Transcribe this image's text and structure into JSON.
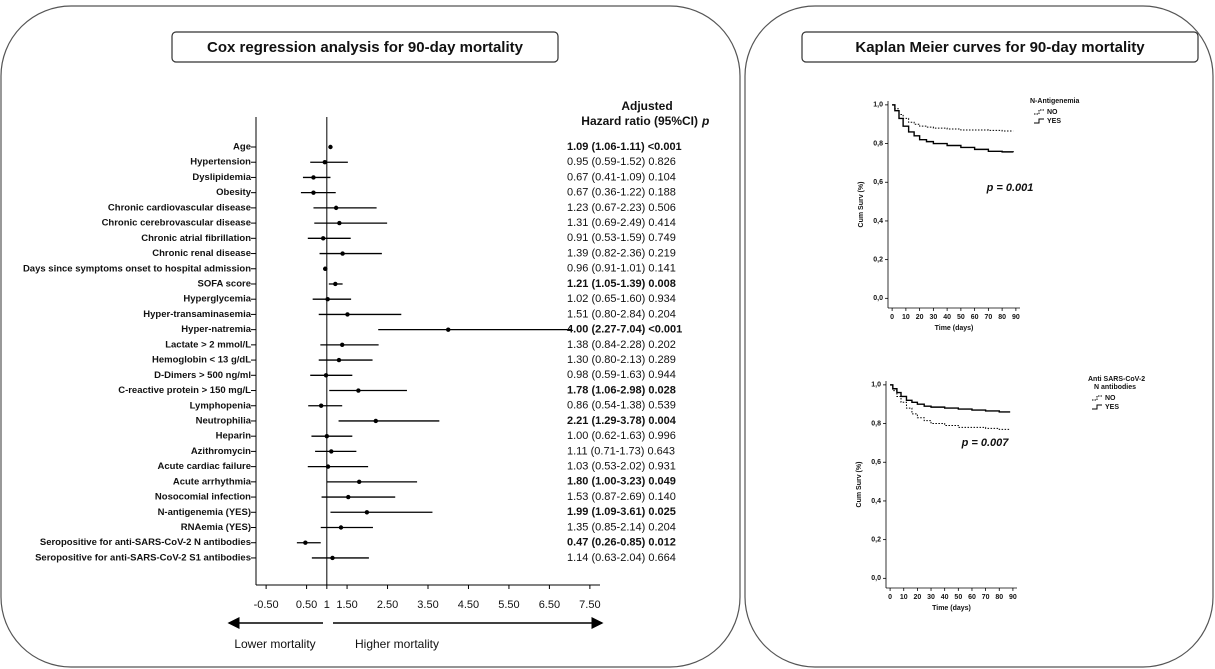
{
  "chart_data": [
    {
      "type": "forest",
      "title": "Cox regression analysis for 90-day mortality",
      "header": [
        "Adjusted",
        "Hazard ratio (95%CI)"
      ],
      "header_p": "p",
      "categories": [
        "Age",
        "Hypertension",
        "Dyslipidemia",
        "Obesity",
        "Chronic cardiovascular disease",
        "Chronic cerebrovascular disease",
        "Chronic atrial fibrillation",
        "Chronic renal disease",
        "Days since symptoms onset to hospital admission",
        "SOFA score",
        "Hyperglycemia",
        "Hyper-transaminasemia",
        "Hyper-natremia",
        "Lactate > 2 mmol/L",
        "Hemoglobin < 13 g/dL",
        "D-Dimers > 500 ng/ml",
        "C-reactive protein  > 150 mg/L",
        "Lymphopenia",
        "Neutrophilia",
        "Heparin",
        "Azithromycin",
        "Acute cardiac failure",
        "Acute arrhythmia",
        "Nosocomial infection",
        "N-antigenemia (YES)",
        "RNAemia (YES)",
        "Seropositive for anti-SARS-CoV-2 N antibodies",
        "Seropositive for anti-SARS-CoV-2 S1 antibodies"
      ],
      "values": [
        1.09,
        0.95,
        0.67,
        0.67,
        1.23,
        1.31,
        0.91,
        1.39,
        0.96,
        1.21,
        1.02,
        1.51,
        4.0,
        1.38,
        1.3,
        0.98,
        1.78,
        0.86,
        2.21,
        1.0,
        1.11,
        1.03,
        1.8,
        1.53,
        1.99,
        1.35,
        0.47,
        1.14
      ],
      "lower": [
        1.06,
        0.59,
        0.41,
        0.36,
        0.67,
        0.69,
        0.53,
        0.82,
        0.91,
        1.05,
        0.65,
        0.8,
        2.27,
        0.84,
        0.8,
        0.59,
        1.06,
        0.54,
        1.29,
        0.62,
        0.71,
        0.53,
        1.0,
        0.87,
        1.09,
        0.85,
        0.26,
        0.63
      ],
      "upper": [
        1.11,
        1.52,
        1.09,
        1.22,
        2.23,
        2.49,
        1.59,
        2.36,
        1.01,
        1.39,
        1.6,
        2.84,
        7.04,
        2.28,
        2.13,
        1.63,
        2.98,
        1.38,
        3.78,
        1.63,
        1.73,
        2.02,
        3.23,
        2.69,
        3.61,
        2.14,
        0.85,
        2.04
      ],
      "value_labels": [
        "1.09 (1.06-1.11) <0.001",
        "0.95 (0.59-1.52) 0.826",
        "0.67 (0.41-1.09) 0.104",
        "0.67 (0.36-1.22) 0.188",
        "1.23 (0.67-2.23) 0.506",
        "1.31 (0.69-2.49) 0.414",
        "0.91 (0.53-1.59) 0.749",
        "1.39 (0.82-2.36) 0.219",
        "0.96 (0.91-1.01) 0.141",
        "1.21 (1.05-1.39) 0.008",
        "1.02 (0.65-1.60) 0.934",
        "1.51 (0.80-2.84) 0.204",
        "4.00 (2.27-7.04) <0.001",
        "1.38 (0.84-2.28) 0.202",
        "1.30 (0.80-2.13) 0.289",
        "0.98 (0.59-1.63) 0.944",
        "1.78 (1.06-2.98) 0.028",
        "0.86 (0.54-1.38) 0.539",
        "2.21 (1.29-3.78) 0.004",
        "1.00 (0.62-1.63) 0.996",
        "1.11 (0.71-1.73) 0.643",
        "1.03 (0.53-2.02) 0.931",
        "1.80 (1.00-3.23) 0.049",
        "1.53 (0.87-2.69) 0.140",
        "1.99 (1.09-3.61) 0.025",
        "1.35 (0.85-2.14) 0.204",
        "0.47 (0.26-0.85) 0.012",
        "1.14 (0.63-2.04) 0.664"
      ],
      "significant": [
        true,
        false,
        false,
        false,
        false,
        false,
        false,
        false,
        false,
        true,
        false,
        false,
        true,
        false,
        false,
        false,
        true,
        false,
        true,
        false,
        false,
        false,
        true,
        false,
        true,
        false,
        true,
        false
      ],
      "reference": 1,
      "xlim": [
        -0.75,
        7.75
      ],
      "xticks": [
        {
          "value": -0.5,
          "label": "-0.50"
        },
        {
          "value": 0.5,
          "label": "0.50"
        },
        1,
        {
          "value": 1.5,
          "label": "1.50"
        },
        {
          "value": 2.5,
          "label": "2.50"
        },
        {
          "value": 3.5,
          "label": "3.50"
        },
        {
          "value": 4.5,
          "label": "4.50"
        },
        {
          "value": 5.5,
          "label": "5.50"
        },
        {
          "value": 6.5,
          "label": "6.50"
        },
        {
          "value": 7.5,
          "label": "7.50"
        }
      ],
      "arrow_labels": [
        "Lower mortality",
        "Higher mortality"
      ],
      "color": "#000000"
    },
    {
      "type": "line",
      "step": true,
      "title": "Kaplan Meier curves for 90-day mortality",
      "legend_title": [
        "N-Antigenemia"
      ],
      "annotation": "p = 0.001",
      "ylabel": "Cum Surv (%)",
      "xlabel": "Time (days)",
      "x": [
        0,
        2,
        5,
        8,
        12,
        16,
        20,
        25,
        30,
        40,
        50,
        60,
        70,
        80,
        88
      ],
      "series": [
        {
          "name": "NO",
          "color": "#000000",
          "line_style": "dotted",
          "values": [
            1.0,
            0.98,
            0.95,
            0.93,
            0.91,
            0.9,
            0.89,
            0.885,
            0.88,
            0.875,
            0.87,
            0.87,
            0.868,
            0.865,
            0.865
          ]
        },
        {
          "name": "YES",
          "color": "#000000",
          "line_style": "solid",
          "values": [
            1.0,
            0.97,
            0.93,
            0.89,
            0.86,
            0.84,
            0.82,
            0.81,
            0.8,
            0.79,
            0.78,
            0.77,
            0.76,
            0.757,
            0.755
          ]
        }
      ],
      "xlim": [
        -3,
        93
      ],
      "ylim": [
        -0.05,
        1.02
      ],
      "xticks": [
        0,
        10,
        20,
        30,
        40,
        50,
        60,
        70,
        80,
        90
      ],
      "yticks": [
        {
          "value": 0,
          "label": "0,0"
        },
        {
          "value": 0.2,
          "label": "0,2"
        },
        {
          "value": 0.4,
          "label": "0,4"
        },
        {
          "value": 0.6,
          "label": "0,6"
        },
        {
          "value": 0.8,
          "label": "0,8"
        },
        {
          "value": 1.0,
          "label": "1,0"
        }
      ]
    },
    {
      "type": "line",
      "step": true,
      "legend_title": [
        "Anti SARS-CoV-2",
        "N antibodies"
      ],
      "annotation": "p = 0.007",
      "ylabel": "Cum Surv (%)",
      "xlabel": "Time (days)",
      "x": [
        0,
        2,
        5,
        8,
        12,
        16,
        20,
        25,
        30,
        40,
        50,
        60,
        70,
        80,
        88
      ],
      "series": [
        {
          "name": "NO",
          "color": "#000000",
          "line_style": "dotted",
          "values": [
            1.0,
            0.97,
            0.94,
            0.91,
            0.88,
            0.85,
            0.83,
            0.815,
            0.8,
            0.79,
            0.78,
            0.78,
            0.775,
            0.77,
            0.77
          ]
        },
        {
          "name": "YES",
          "color": "#000000",
          "line_style": "solid",
          "values": [
            1.0,
            0.98,
            0.96,
            0.94,
            0.92,
            0.91,
            0.9,
            0.89,
            0.885,
            0.88,
            0.875,
            0.87,
            0.865,
            0.86,
            0.86
          ]
        }
      ],
      "xlim": [
        -3,
        93
      ],
      "ylim": [
        -0.05,
        1.02
      ],
      "xticks": [
        0,
        10,
        20,
        30,
        40,
        50,
        60,
        70,
        80,
        90
      ],
      "yticks": [
        {
          "value": 0,
          "label": "0,0"
        },
        {
          "value": 0.2,
          "label": "0,2"
        },
        {
          "value": 0.4,
          "label": "0,4"
        },
        {
          "value": 0.6,
          "label": "0,6"
        },
        {
          "value": 0.8,
          "label": "0,8"
        },
        {
          "value": 1.0,
          "label": "1,0"
        }
      ]
    }
  ]
}
